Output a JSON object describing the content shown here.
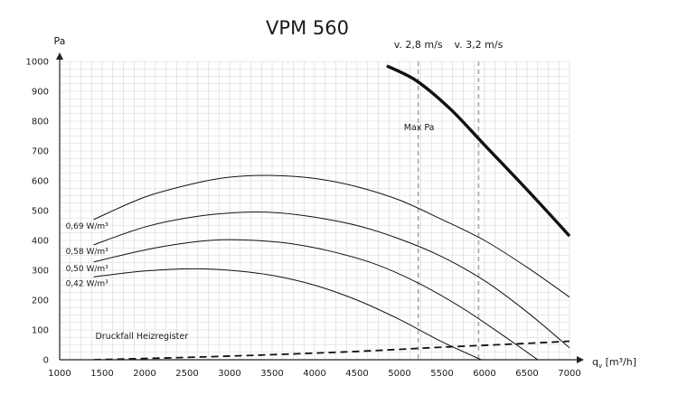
{
  "chart_data": {
    "type": "line",
    "title": "VPM 560",
    "ylabel": "Pa",
    "xlabel": "q",
    "xlabel_sub": "v",
    "xlabel_unit": " [m³/h]",
    "xlim": [
      1000,
      7000
    ],
    "ylim": [
      0,
      1000
    ],
    "x_ticks": [
      1000,
      1500,
      2000,
      2500,
      3000,
      3500,
      4000,
      4500,
      5000,
      5500,
      6000,
      6500,
      7000
    ],
    "y_ticks": [
      0,
      100,
      200,
      300,
      400,
      500,
      600,
      700,
      800,
      900,
      1000
    ],
    "grid": true,
    "colors": {
      "curve": "#111111",
      "grid": "#d6d6d6",
      "velocity_line": "#a8a8a8"
    },
    "series": [
      {
        "name": "Max Pa",
        "style": "thick",
        "x": [
          4850,
          5200,
          5600,
          6000,
          6500,
          7000
        ],
        "y": [
          985,
          935,
          840,
          720,
          570,
          415
        ]
      },
      {
        "name": "0,69 W/m³",
        "style": "thin",
        "x": [
          1400,
          2000,
          2600,
          3000,
          3500,
          4000,
          4500,
          5000,
          5500,
          6000,
          6500,
          7000
        ],
        "y": [
          470,
          545,
          592,
          612,
          618,
          608,
          580,
          535,
          470,
          400,
          310,
          210
        ]
      },
      {
        "name": "0,58 W/m³",
        "style": "thin",
        "x": [
          1400,
          2000,
          2600,
          3200,
          3600,
          4000,
          4500,
          5000,
          5500,
          6000,
          6500,
          7000
        ],
        "y": [
          385,
          445,
          480,
          495,
          492,
          478,
          450,
          405,
          345,
          265,
          160,
          40
        ]
      },
      {
        "name": "0,50 W/m³",
        "style": "thin",
        "x": [
          1400,
          2000,
          2500,
          2900,
          3300,
          3700,
          4200,
          4700,
          5200,
          5700,
          6200,
          6700
        ],
        "y": [
          328,
          368,
          392,
          402,
          400,
          390,
          363,
          322,
          260,
          180,
          85,
          -15
        ]
      },
      {
        "name": "0,42 W/m³",
        "style": "thin",
        "x": [
          1400,
          1900,
          2300,
          2600,
          3000,
          3500,
          4000,
          4500,
          5000,
          5500,
          6000,
          6100
        ],
        "y": [
          278,
          295,
          303,
          305,
          300,
          283,
          250,
          200,
          135,
          60,
          -5,
          -18
        ]
      },
      {
        "name": "Druckfall Heizregister",
        "style": "dashed",
        "x": [
          1400,
          2500,
          3500,
          4500,
          5500,
          6500,
          7000
        ],
        "y": [
          0,
          8,
          17,
          28,
          42,
          55,
          62
        ]
      }
    ],
    "velocity_lines": [
      {
        "label": "v. 2,8 m/s",
        "x": 5220
      },
      {
        "label": "v. 3,2 m/s",
        "x": 5930
      }
    ]
  }
}
